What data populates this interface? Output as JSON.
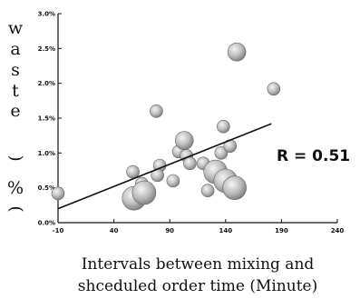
{
  "chart_data": {
    "type": "scatter",
    "title": "",
    "ylabel_chars": [
      "w",
      "a",
      "s",
      "t",
      "e",
      "(",
      "%",
      ")"
    ],
    "xlabel_lines": [
      "Intervals between mixing and",
      "shceduled order time (Minute)"
    ],
    "annotation": "R = 0.51",
    "xlim": [
      -10,
      240
    ],
    "ylim": [
      0,
      3.0
    ],
    "x_ticks": [
      -10,
      40,
      90,
      140,
      190,
      240
    ],
    "x_tick_labels": [
      "-10",
      "40",
      "90",
      "140",
      "190",
      "240"
    ],
    "y_ticks": [
      0,
      0.5,
      1.0,
      1.5,
      2.0,
      2.5,
      3.0
    ],
    "y_tick_labels": [
      "0.0%",
      "0.5%",
      "1.0%",
      "1.5%",
      "2.0%",
      "2.5%",
      "3.0%"
    ],
    "grid": false,
    "points": [
      {
        "x": -10,
        "y": 0.42,
        "size": "small"
      },
      {
        "x": 57,
        "y": 0.73,
        "size": "small"
      },
      {
        "x": 58,
        "y": 0.35,
        "size": "large"
      },
      {
        "x": 65,
        "y": 0.56,
        "size": "small"
      },
      {
        "x": 67,
        "y": 0.43,
        "size": "large"
      },
      {
        "x": 78,
        "y": 1.6,
        "size": "small"
      },
      {
        "x": 81,
        "y": 0.82,
        "size": "small"
      },
      {
        "x": 79,
        "y": 0.68,
        "size": "small"
      },
      {
        "x": 93,
        "y": 0.6,
        "size": "small"
      },
      {
        "x": 98,
        "y": 1.02,
        "size": "small"
      },
      {
        "x": 103,
        "y": 1.18,
        "size": "medium"
      },
      {
        "x": 105,
        "y": 0.96,
        "size": "small"
      },
      {
        "x": 108,
        "y": 0.85,
        "size": "small"
      },
      {
        "x": 120,
        "y": 0.85,
        "size": "small"
      },
      {
        "x": 124,
        "y": 0.46,
        "size": "small"
      },
      {
        "x": 131,
        "y": 0.73,
        "size": "large"
      },
      {
        "x": 136,
        "y": 1.0,
        "size": "small"
      },
      {
        "x": 138,
        "y": 1.38,
        "size": "small"
      },
      {
        "x": 140,
        "y": 0.6,
        "size": "large"
      },
      {
        "x": 144,
        "y": 1.1,
        "size": "small"
      },
      {
        "x": 148,
        "y": 0.5,
        "size": "large"
      },
      {
        "x": 150,
        "y": 2.45,
        "size": "medium"
      },
      {
        "x": 183,
        "y": 1.92,
        "size": "small"
      }
    ],
    "trendline": {
      "x": [
        -10,
        181
      ],
      "y": [
        0.2,
        1.42
      ]
    }
  }
}
